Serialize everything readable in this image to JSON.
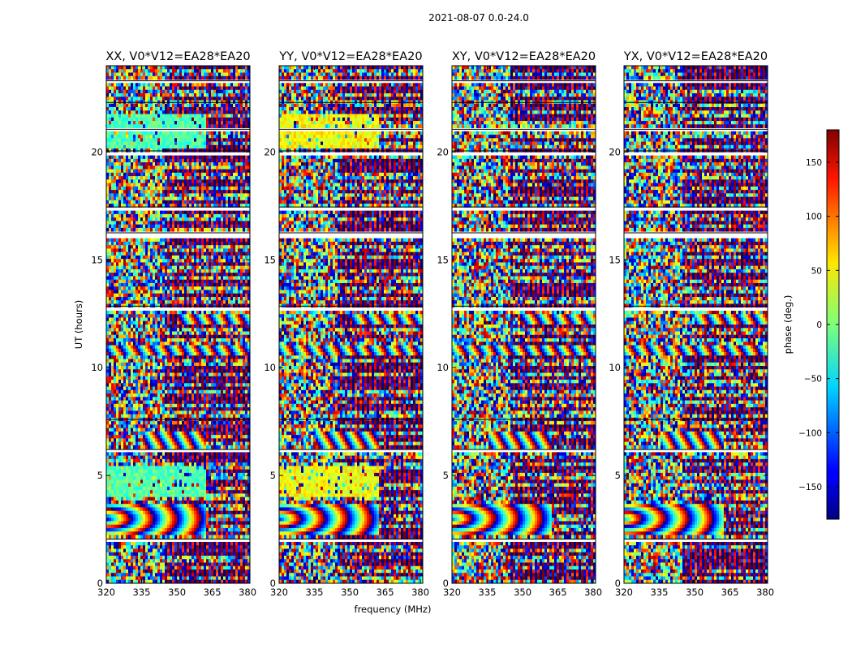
{
  "chart_data": {
    "type": "heatmap",
    "suptitle": "2021-08-07 0.0-24.0",
    "xlabel": "frequency (MHz)",
    "ylabel": "UT (hours)",
    "xlim": [
      320,
      381
    ],
    "ylim": [
      0,
      24
    ],
    "x_ticks": [
      "320",
      "335",
      "350",
      "365",
      "380"
    ],
    "y_ticks": [
      "0",
      "5",
      "10",
      "15",
      "20"
    ],
    "colormap": "jet",
    "colorbar": {
      "label": "phase (deg.)",
      "range": [
        -180,
        180
      ],
      "ticks": [
        "−150",
        "−100",
        "−50",
        "0",
        "50",
        "100",
        "150"
      ],
      "tick_values": [
        -150,
        -100,
        -50,
        0,
        50,
        100,
        150
      ]
    },
    "panels": [
      {
        "title": "XX, V0*V12=EA28*EA20",
        "pol": "XX"
      },
      {
        "title": "YY, V0*V12=EA28*EA20",
        "pol": "YY"
      },
      {
        "title": "XY, V0*V12=EA28*EA20",
        "pol": "XY"
      },
      {
        "title": "YX, V0*V12=EA28*EA20",
        "pol": "YX"
      }
    ],
    "flagged_time_gaps_hours": [
      [
        1.85,
        2.05
      ],
      [
        6.05,
        6.2
      ],
      [
        7.5,
        7.6
      ],
      [
        12.6,
        12.85
      ],
      [
        16.05,
        16.25
      ],
      [
        17.3,
        17.45
      ],
      [
        19.85,
        20.05
      ],
      [
        20.9,
        21.05
      ],
      [
        22.2,
        22.3
      ],
      [
        23.2,
        23.3
      ]
    ],
    "features": [
      {
        "type": "fringe_arcs",
        "t_range": [
          2.25,
          3.75
        ],
        "freq_range": [
          320,
          362
        ]
      },
      {
        "type": "coherent_phase_block",
        "t_range": [
          20.2,
          21.8
        ],
        "freq_range": [
          320,
          362
        ],
        "phase_xx": -20,
        "phase_yy": 45
      },
      {
        "type": "coherent_phase_block",
        "t_range": [
          4.0,
          5.5
        ],
        "freq_range": [
          320,
          362
        ],
        "phase_xx": -15,
        "phase_yy": 40
      },
      {
        "type": "fringe_band",
        "t_range": [
          10.55,
          11.05
        ],
        "freq_range": [
          320,
          381
        ]
      },
      {
        "type": "fringe_band",
        "t_range": [
          12.0,
          12.55
        ],
        "freq_range": [
          350,
          381
        ]
      },
      {
        "type": "fringe_band",
        "t_range": [
          6.3,
          7.1
        ],
        "freq_range": [
          335,
          362
        ]
      }
    ]
  }
}
